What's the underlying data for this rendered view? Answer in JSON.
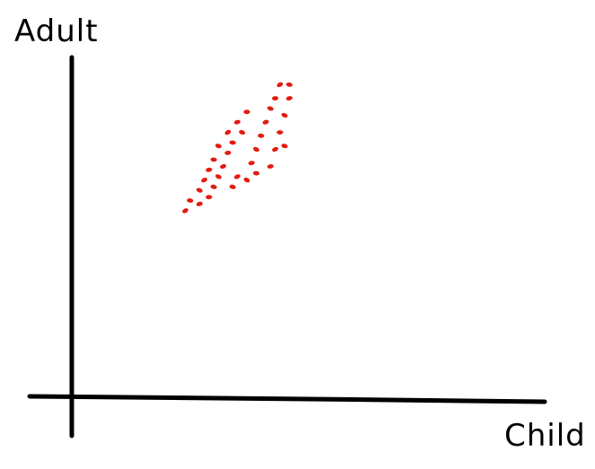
{
  "chart_data": {
    "type": "scatter",
    "xlabel": "Child",
    "ylabel": "Adult",
    "grid": false,
    "legend": "none",
    "point_color": "#e21b10",
    "axis_color": "#000000",
    "series": [
      {
        "points": [
          {
            "x": 0.24,
            "y": 0.55
          },
          {
            "x": 0.25,
            "y": 0.58
          },
          {
            "x": 0.27,
            "y": 0.57
          },
          {
            "x": 0.27,
            "y": 0.61
          },
          {
            "x": 0.29,
            "y": 0.59
          },
          {
            "x": 0.28,
            "y": 0.64
          },
          {
            "x": 0.3,
            "y": 0.62
          },
          {
            "x": 0.29,
            "y": 0.67
          },
          {
            "x": 0.31,
            "y": 0.65
          },
          {
            "x": 0.3,
            "y": 0.7
          },
          {
            "x": 0.32,
            "y": 0.68
          },
          {
            "x": 0.31,
            "y": 0.74
          },
          {
            "x": 0.33,
            "y": 0.72
          },
          {
            "x": 0.33,
            "y": 0.78
          },
          {
            "x": 0.34,
            "y": 0.75
          },
          {
            "x": 0.35,
            "y": 0.81
          },
          {
            "x": 0.36,
            "y": 0.78
          },
          {
            "x": 0.37,
            "y": 0.84
          },
          {
            "x": 0.35,
            "y": 0.65
          },
          {
            "x": 0.34,
            "y": 0.62
          },
          {
            "x": 0.38,
            "y": 0.69
          },
          {
            "x": 0.39,
            "y": 0.73
          },
          {
            "x": 0.4,
            "y": 0.77
          },
          {
            "x": 0.41,
            "y": 0.81
          },
          {
            "x": 0.42,
            "y": 0.85
          },
          {
            "x": 0.43,
            "y": 0.88
          },
          {
            "x": 0.44,
            "y": 0.92
          },
          {
            "x": 0.46,
            "y": 0.92
          },
          {
            "x": 0.46,
            "y": 0.88
          },
          {
            "x": 0.45,
            "y": 0.83
          },
          {
            "x": 0.44,
            "y": 0.78
          },
          {
            "x": 0.43,
            "y": 0.73
          },
          {
            "x": 0.45,
            "y": 0.74
          },
          {
            "x": 0.42,
            "y": 0.68
          },
          {
            "x": 0.37,
            "y": 0.64
          },
          {
            "x": 0.39,
            "y": 0.66
          }
        ]
      }
    ]
  }
}
